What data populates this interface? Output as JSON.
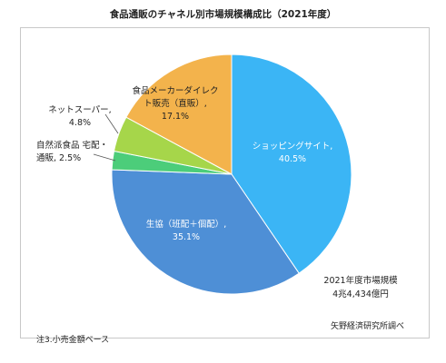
{
  "chart_data": {
    "type": "pie",
    "title": "食品通販のチャネル別市場規模構成比（2021年度）",
    "start_angle_deg": 0,
    "direction": "clockwise",
    "slices": [
      {
        "name": "ショッピングサイト",
        "value": 40.5,
        "label_lines": [
          "ショッピングサイト,",
          "40.5%"
        ],
        "color": "#3bb5f5",
        "label_color": "#ffffff"
      },
      {
        "name": "生協（班配＋個配）",
        "value": 35.1,
        "label_lines": [
          "生協（班配＋個配）,",
          "35.1%"
        ],
        "color": "#4e8fd6",
        "label_color": "#ffffff"
      },
      {
        "name": "自然派食品 宅配・通販",
        "value": 2.5,
        "label_lines": [
          "自然派食品 宅配・",
          "通販, 2.5%"
        ],
        "color": "#4ccd7a",
        "label_color": "#222222"
      },
      {
        "name": "ネットスーパー",
        "value": 4.8,
        "label_lines": [
          "ネットスーパー,",
          "4.8%"
        ],
        "color": "#a6d64a",
        "label_color": "#222222"
      },
      {
        "name": "食品メーカーダイレクト販売（直販）",
        "value": 17.1,
        "label_lines": [
          "食品メーカーダイレク",
          "ト販売（直販）,",
          "17.1%"
        ],
        "color": "#f3b34c",
        "label_color": "#222222"
      }
    ],
    "market_size_lines": [
      "2021年度市場規模",
      "4兆4,434億円"
    ]
  },
  "source": "矢野経済研究所調べ",
  "footnote": "注3.小売金額ベース"
}
